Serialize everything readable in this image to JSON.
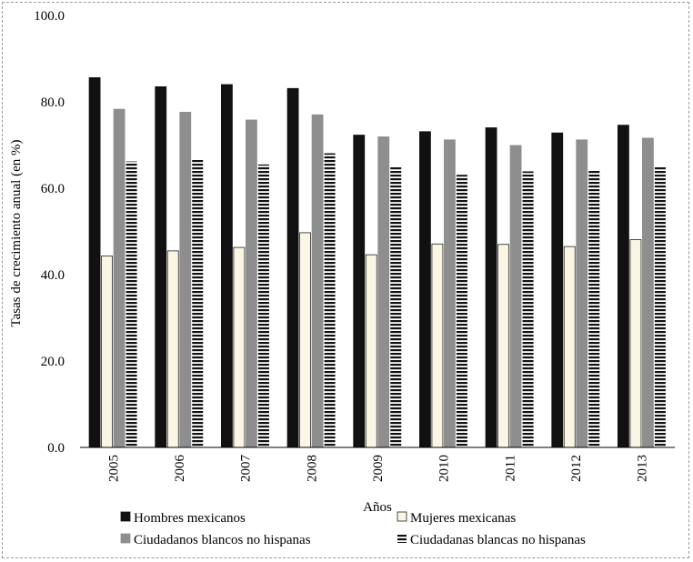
{
  "chart_data": {
    "type": "bar",
    "title": "",
    "xlabel": "Años",
    "ylabel": "Tasas de crecimiento anual (en %)",
    "ylim": [
      0,
      100
    ],
    "yticks": [
      "0.0",
      "20.0",
      "40.0",
      "60.0",
      "80.0",
      "100.0"
    ],
    "grid": false,
    "legend_position": "bottom",
    "categories": [
      "2005",
      "2006",
      "2007",
      "2008",
      "2009",
      "2010",
      "2011",
      "2012",
      "2013"
    ],
    "series": [
      {
        "name": "Hombres mexicanos",
        "color": "#111111",
        "style": "solid-dark",
        "values": [
          85.6,
          83.5,
          84.0,
          83.1,
          72.3,
          73.1,
          74.0,
          72.8,
          74.6
        ]
      },
      {
        "name": "Mujeres mexicanas",
        "color": "#fbf6e4",
        "style": "light",
        "values": [
          44.3,
          45.5,
          46.3,
          49.7,
          44.6,
          47.1,
          47.0,
          46.5,
          48.1
        ]
      },
      {
        "name": "Ciudadanos blancos no hispanas",
        "color": "#8e8e8e",
        "style": "solid-gray",
        "values": [
          78.3,
          77.6,
          75.8,
          77.0,
          71.9,
          71.2,
          69.9,
          71.2,
          71.6
        ]
      },
      {
        "name": "Ciudadanas blancas no hispanas",
        "color": "#111111",
        "style": "horizontal-stripes",
        "values": [
          66.2,
          66.8,
          65.5,
          68.1,
          64.9,
          63.1,
          63.9,
          64.3,
          64.9
        ]
      }
    ]
  }
}
